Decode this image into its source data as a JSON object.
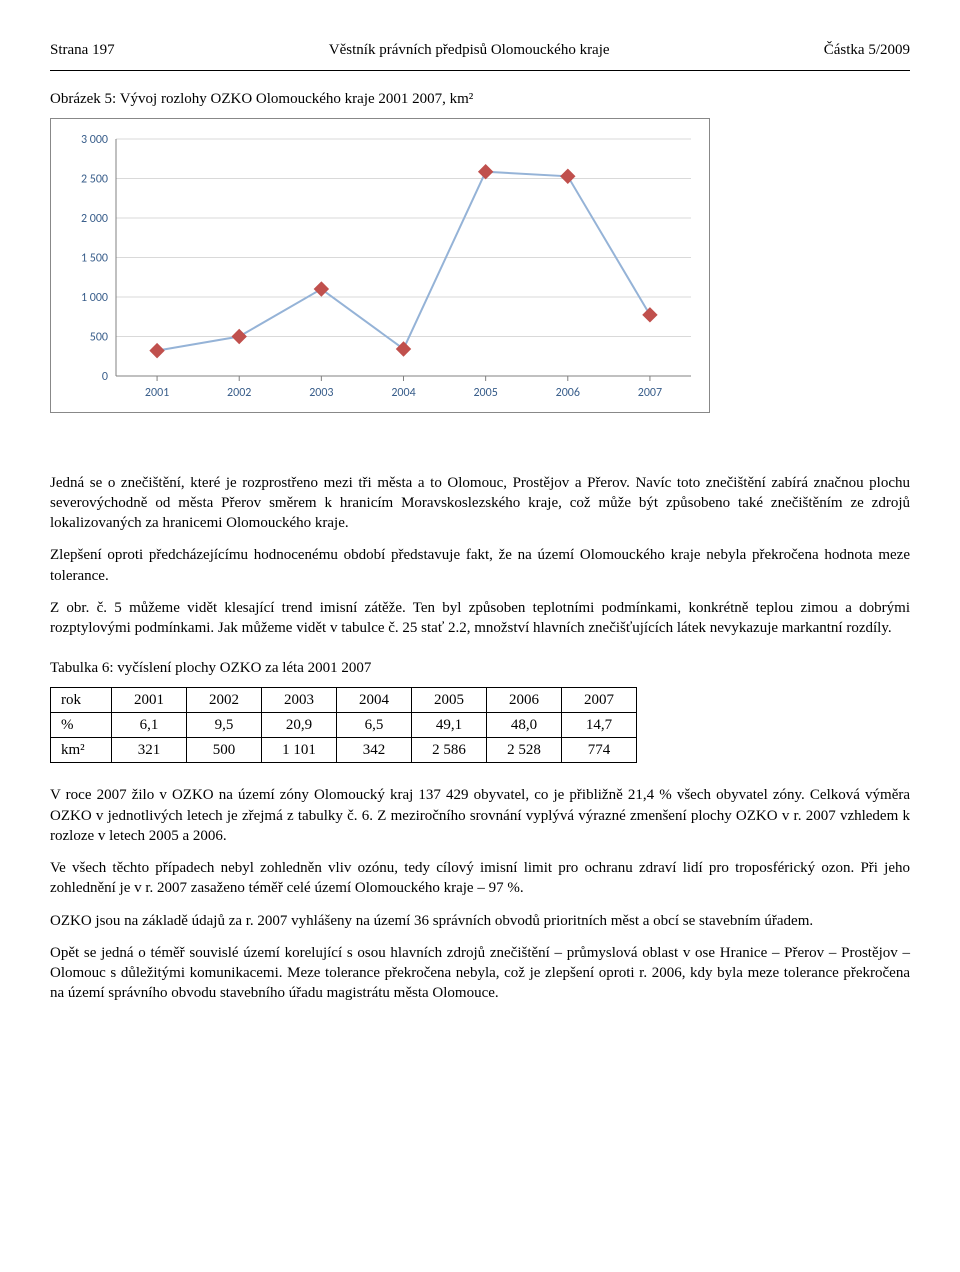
{
  "header": {
    "left": "Strana 197",
    "center": "Věstník právních předpisů Olomouckého kraje",
    "right": "Částka 5/2009"
  },
  "figure": {
    "title": "Obrázek 5: Vývoj rozlohy OZKO Olomouckého kraje 2001 2007, km²",
    "type": "line",
    "categories": [
      "2001",
      "2002",
      "2003",
      "2004",
      "2005",
      "2006",
      "2007"
    ],
    "values": [
      321,
      500,
      1101,
      342,
      2586,
      2528,
      774
    ],
    "ylim": [
      0,
      3000
    ],
    "ytick_step": 500,
    "yticks": [
      "0",
      "500",
      "1 000",
      "1 500",
      "2 000",
      "2 500",
      "3 000"
    ],
    "line_color": "#95b3d7",
    "marker_color": "#c0504d",
    "grid_color": "#d9d9d9",
    "axis_color": "#808080",
    "tick_font_color": "#385d8a",
    "background_color": "#ffffff",
    "marker_size": 7,
    "line_width": 2,
    "tick_fontsize": 12
  },
  "paragraphs": {
    "p1": "Jedná se o znečištění, které je rozprostřeno mezi tři města a to Olomouc, Prostějov a Přerov. Navíc toto znečištění zabírá značnou plochu severovýchodně od města Přerov směrem k hranicím Moravskoslezského kraje, což může být způsobeno také znečištěním ze zdrojů lokalizovaných za hranicemi Olomouckého kraje.",
    "p2": "Zlepšení oproti předcházejícímu hodnocenému období představuje fakt, že na území Olomouckého kraje nebyla překročena hodnota meze tolerance.",
    "p3": "Z obr. č. 5 můžeme vidět klesající trend imisní zátěže. Ten byl způsoben teplotními podmínkami, konkrétně teplou zimou a dobrými rozptylovými podmínkami. Jak můžeme vidět v tabulce č. 25 stať 2.2, množství hlavních znečišťujících látek nevykazuje markantní rozdíly.",
    "p4": "V roce 2007 žilo v OZKO na území zóny Olomoucký kraj 137 429 obyvatel, co je přibližně 21,4 % všech obyvatel zóny. Celková výměra OZKO v jednotlivých letech je zřejmá z tabulky č. 6. Z meziročního srovnání vyplývá výrazné zmenšení plochy OZKO v r. 2007 vzhledem k rozloze v letech 2005 a 2006.",
    "p5": "Ve všech těchto případech nebyl zohledněn vliv ozónu, tedy cílový imisní limit pro ochranu zdraví lidí pro troposférický ozon. Při jeho zohlednění je v r. 2007 zasaženo téměř celé území Olomouckého kraje – 97 %.",
    "p6": "OZKO jsou na základě údajů za r. 2007 vyhlášeny na území 36 správních obvodů prioritních měst a obcí se stavebním úřadem.",
    "p7": "Opět se jedná o téměř souvislé území korelující s osou hlavních zdrojů znečištění – průmyslová oblast v ose Hranice – Přerov – Prostějov – Olomouc s důležitými komunikacemi. Meze tolerance překročena nebyla, což je zlepšení oproti r. 2006, kdy byla meze tolerance překročena na území správního obvodu stavebního úřadu magistrátu města Olomouce."
  },
  "table": {
    "caption": "Tabulka 6: vyčíslení plochy OZKO za léta 2001 2007",
    "rows": [
      {
        "head": "rok",
        "cells": [
          "2001",
          "2002",
          "2003",
          "2004",
          "2005",
          "2006",
          "2007"
        ]
      },
      {
        "head": "%",
        "cells": [
          "6,1",
          "9,5",
          "20,9",
          "6,5",
          "49,1",
          "48,0",
          "14,7"
        ]
      },
      {
        "head": "km²",
        "cells": [
          "321",
          "500",
          "1 101",
          "342",
          "2 586",
          "2 528",
          "774"
        ]
      }
    ]
  }
}
